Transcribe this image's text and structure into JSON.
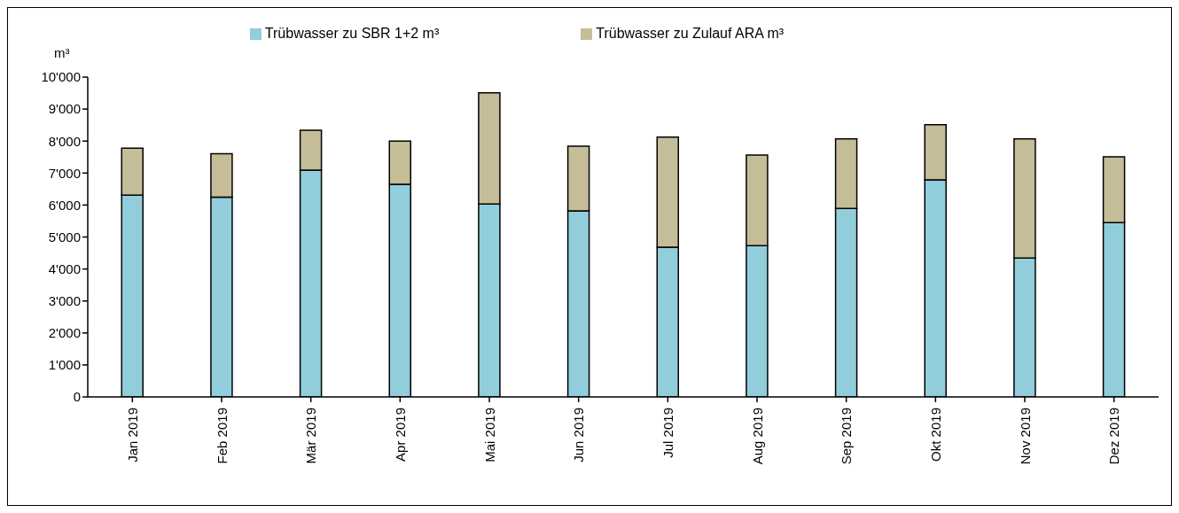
{
  "chart_data": {
    "type": "bar",
    "stacked": true,
    "ylabel": "m³",
    "categories": [
      "Jan 2019",
      "Feb 2019",
      "Mär 2019",
      "Apr 2019",
      "Mai 2019",
      "Jun 2019",
      "Jul 2019",
      "Aug 2019",
      "Sep 2019",
      "Okt 2019",
      "Nov 2019",
      "Dez 2019"
    ],
    "series": [
      {
        "name": "Trübwasser zu SBR 1+2 m³",
        "color": "#92cddc",
        "values": [
          6310,
          6250,
          7090,
          6650,
          6030,
          5820,
          4680,
          4730,
          5890,
          6790,
          4340,
          5450
        ]
      },
      {
        "name": "Trübwasser zu Zulauf ARA m³",
        "color": "#c4bd97",
        "values": [
          1470,
          1355,
          1250,
          1350,
          3480,
          2020,
          3440,
          2830,
          2180,
          1720,
          3730,
          2060
        ]
      }
    ],
    "ylim": [
      0,
      10000
    ],
    "yticks": [
      0,
      {
        "value": 1000,
        "label": "1'000"
      },
      {
        "value": 2000,
        "label": "2'000"
      },
      {
        "value": 3000,
        "label": "3'000"
      },
      {
        "value": 4000,
        "label": "4'000"
      },
      {
        "value": 5000,
        "label": "5'000"
      },
      {
        "value": 6000,
        "label": "6'000"
      },
      {
        "value": 7000,
        "label": "7'000"
      },
      {
        "value": 8000,
        "label": "8'000"
      },
      {
        "value": 9000,
        "label": "9'000"
      },
      {
        "value": 10000,
        "label": "10'000"
      }
    ],
    "grid": false,
    "legend": "top"
  }
}
